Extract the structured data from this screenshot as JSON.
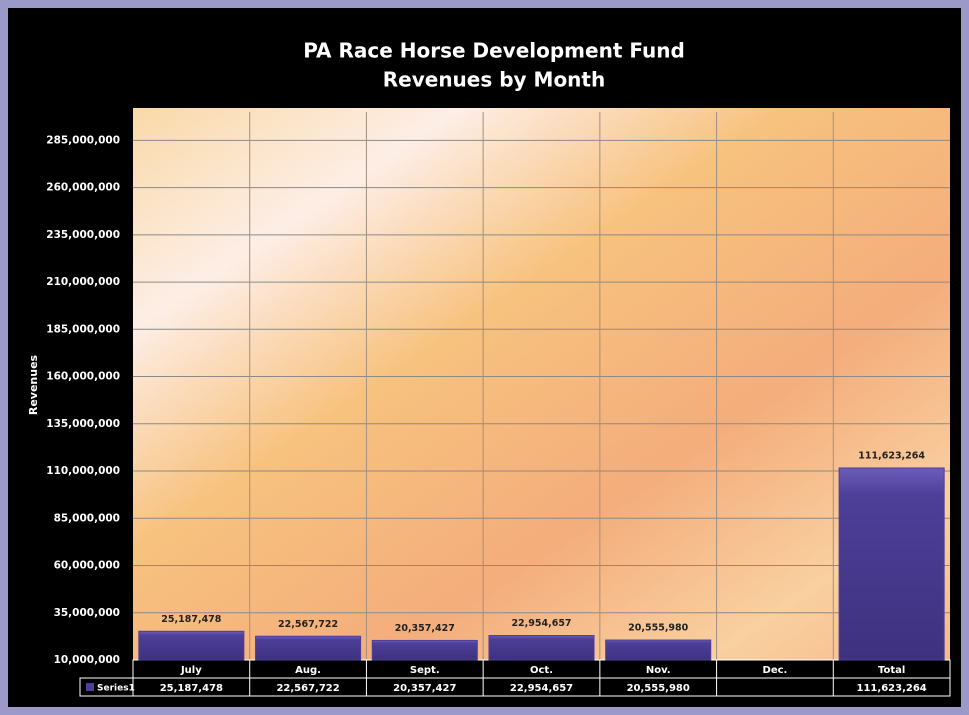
{
  "chart_data": {
    "type": "bar",
    "title": "PA Race Horse Development Fund",
    "subtitle": "Revenues by Month",
    "y_label": "Revenues",
    "categories": [
      "July",
      "Aug.",
      "Sept.",
      "Oct.",
      "Nov.",
      "Dec.",
      "Total"
    ],
    "series": [
      {
        "name": "Series1",
        "color": "#4d3f98",
        "values": [
          25187478,
          22567722,
          20357427,
          22954657,
          20555980,
          null,
          111623264
        ],
        "value_labels": [
          "25,187,478",
          "22,567,722",
          "20,357,427",
          "22,954,657",
          "20,555,980",
          null,
          "111,623,264"
        ]
      }
    ],
    "ylim": [
      10000000,
      300000000
    ],
    "yticks": [
      {
        "value": 10000000,
        "label": "10,000,000"
      },
      {
        "value": 35000000,
        "label": "35,000,000"
      },
      {
        "value": 60000000,
        "label": "60,000,000"
      },
      {
        "value": 85000000,
        "label": "85,000,000"
      },
      {
        "value": 110000000,
        "label": "110,000,000"
      },
      {
        "value": 135000000,
        "label": "135,000,000"
      },
      {
        "value": 160000000,
        "label": "160,000,000"
      },
      {
        "value": 185000000,
        "label": "185,000,000"
      },
      {
        "value": 210000000,
        "label": "210,000,000"
      },
      {
        "value": 235000000,
        "label": "235,000,000"
      },
      {
        "value": 260000000,
        "label": "260,000,000"
      },
      {
        "value": 285000000,
        "label": "285,000,000"
      }
    ],
    "grid": true
  }
}
